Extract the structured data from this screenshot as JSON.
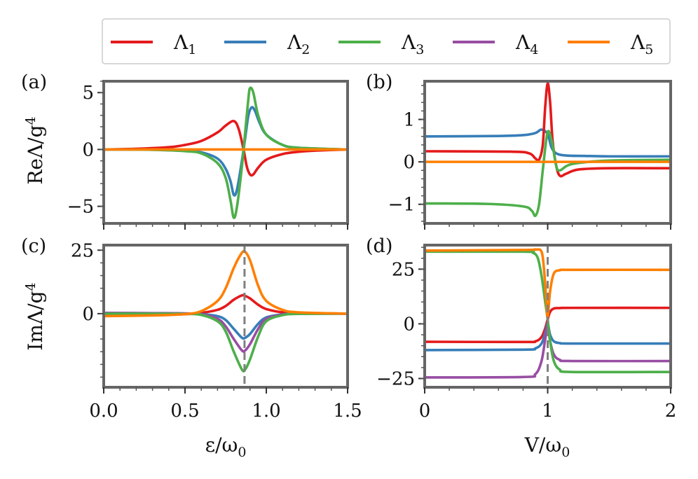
{
  "colors": {
    "L1": "#e41a1c",
    "L2": "#377eb8",
    "L3": "#4daf4a",
    "L4": "#984ea3",
    "L5": "#ff7f00",
    "frame": "#666666",
    "dashed": "#808080"
  },
  "legend": {
    "placement": "top",
    "entries": [
      {
        "key": "L1",
        "label": "Λ",
        "sub": "1"
      },
      {
        "key": "L2",
        "label": "Λ",
        "sub": "2"
      },
      {
        "key": "L3",
        "label": "Λ",
        "sub": "3"
      },
      {
        "key": "L4",
        "label": "Λ",
        "sub": "4"
      },
      {
        "key": "L5",
        "label": "Λ",
        "sub": "5"
      }
    ]
  },
  "axes": {
    "x_left": {
      "pre": "ε/ω",
      "sub": "0"
    },
    "x_right": {
      "pre": "V/ω",
      "sub": "0"
    },
    "y_top": {
      "pre": "ReΛ/g",
      "sup": "4"
    },
    "y_bottom": {
      "pre": "ImΛ/g",
      "sup": "4"
    }
  },
  "chart_data": [
    {
      "panel": "(a)",
      "type": "line",
      "xlim": [
        0,
        1.5
      ],
      "ylim": [
        -6.5,
        6
      ],
      "xticks": [],
      "yticks": [
        -5,
        0,
        5
      ],
      "ytick_labels": [
        "−5",
        "0",
        "5"
      ],
      "vline_x": null,
      "series": [
        {
          "key": "L1",
          "x": [
            0,
            0.2,
            0.4,
            0.5,
            0.6,
            0.7,
            0.75,
            0.8,
            0.83,
            0.86,
            0.88,
            0.9,
            0.92,
            0.95,
            1.0,
            1.1,
            1.2,
            1.3,
            1.5
          ],
          "y": [
            0,
            0.06,
            0.2,
            0.4,
            0.75,
            1.5,
            2.1,
            2.5,
            1.8,
            0,
            -1.5,
            -2.2,
            -2.2,
            -1.6,
            -0.9,
            -0.4,
            -0.2,
            -0.1,
            0
          ]
        },
        {
          "key": "L2",
          "x": [
            0,
            0.3,
            0.5,
            0.6,
            0.7,
            0.75,
            0.78,
            0.8,
            0.82,
            0.85,
            0.87,
            0.89,
            0.91,
            0.93,
            0.96,
            1.0,
            1.1,
            1.2,
            1.5
          ],
          "y": [
            0,
            -0.02,
            -0.1,
            -0.25,
            -0.8,
            -1.7,
            -2.8,
            -4.0,
            -3.5,
            -1.0,
            1.0,
            3.0,
            3.7,
            3.4,
            2.3,
            1.3,
            0.4,
            0.15,
            0
          ]
        },
        {
          "key": "L3",
          "x": [
            0,
            0.3,
            0.5,
            0.6,
            0.7,
            0.75,
            0.78,
            0.8,
            0.82,
            0.85,
            0.87,
            0.89,
            0.9,
            0.92,
            0.95,
            1.0,
            1.1,
            1.2,
            1.5
          ],
          "y": [
            0,
            -0.03,
            -0.15,
            -0.35,
            -1.2,
            -2.5,
            -4.5,
            -6.0,
            -5.0,
            -1.5,
            1.5,
            4.5,
            5.4,
            5.0,
            3.0,
            1.3,
            0.4,
            0.15,
            0
          ]
        },
        {
          "key": "L5",
          "x": [
            0,
            1.5
          ],
          "y": [
            0,
            0
          ]
        }
      ]
    },
    {
      "panel": "(b)",
      "type": "line",
      "xlim": [
        0,
        2
      ],
      "ylim": [
        -1.45,
        1.9
      ],
      "xticks": [],
      "yticks": [
        -1,
        0,
        1
      ],
      "ytick_labels": [
        "−1",
        "0",
        "1"
      ],
      "vline_x": null,
      "series": [
        {
          "key": "L2",
          "x": [
            0,
            0.6,
            0.8,
            0.9,
            0.95,
            1.0,
            1.03,
            1.07,
            1.15,
            1.3,
            1.5,
            2.0
          ],
          "y": [
            0.6,
            0.61,
            0.63,
            0.68,
            0.76,
            0.65,
            0.35,
            0.2,
            0.15,
            0.14,
            0.13,
            0.13
          ]
        },
        {
          "key": "L1",
          "x": [
            0,
            0.7,
            0.85,
            0.9,
            0.93,
            0.96,
            0.98,
            1.0,
            1.02,
            1.04,
            1.07,
            1.1,
            1.15,
            1.25,
            1.5,
            2.0
          ],
          "y": [
            0.25,
            0.24,
            0.2,
            0.08,
            0.05,
            0.4,
            1.3,
            1.85,
            1.4,
            0.5,
            -0.1,
            -0.33,
            -0.28,
            -0.18,
            -0.15,
            -0.15
          ]
        },
        {
          "key": "L3",
          "x": [
            0,
            0.5,
            0.8,
            0.87,
            0.9,
            0.93,
            0.96,
            0.99,
            1.01,
            1.04,
            1.07,
            1.1,
            1.2,
            1.5,
            2.0
          ],
          "y": [
            -0.98,
            -0.99,
            -1.05,
            -1.15,
            -1.27,
            -1.0,
            -0.2,
            0.55,
            0.72,
            0.4,
            -0.1,
            -0.2,
            -0.05,
            0.03,
            0.05
          ]
        },
        {
          "key": "L5",
          "x": [
            0,
            2
          ],
          "y": [
            0,
            0
          ]
        }
      ]
    },
    {
      "panel": "(c)",
      "type": "line",
      "xlim": [
        0,
        1.5
      ],
      "ylim": [
        -29,
        27
      ],
      "xticks": [
        0,
        0.5,
        1.0,
        1.5
      ],
      "xtick_labels": [
        "0.0",
        "0.5",
        "1.0",
        "1.5"
      ],
      "yticks": [
        0,
        25
      ],
      "ytick_labels": [
        "0",
        "25"
      ],
      "vline_x": 0.866,
      "series": [
        {
          "key": "L1",
          "x": [
            0,
            0.3,
            0.5,
            0.6,
            0.7,
            0.75,
            0.8,
            0.85,
            0.87,
            0.9,
            0.95,
            1.0,
            1.1,
            1.2,
            1.5
          ],
          "y": [
            -0.5,
            -0.4,
            -0.2,
            0.3,
            1.5,
            3.0,
            5.5,
            7.2,
            7.0,
            6.0,
            3.5,
            1.8,
            0.5,
            0.2,
            0
          ]
        },
        {
          "key": "L2",
          "x": [
            0,
            0.3,
            0.5,
            0.6,
            0.7,
            0.75,
            0.8,
            0.85,
            0.87,
            0.9,
            0.95,
            1.0,
            1.1,
            1.2,
            1.5
          ],
          "y": [
            0.2,
            0.1,
            0,
            -0.2,
            -1.0,
            -2.5,
            -6.0,
            -9.5,
            -9.5,
            -8.0,
            -4.0,
            -1.5,
            -0.3,
            0,
            0
          ]
        },
        {
          "key": "L4",
          "x": [
            0,
            0.3,
            0.5,
            0.6,
            0.7,
            0.75,
            0.8,
            0.85,
            0.87,
            0.9,
            0.95,
            1.0,
            1.1,
            1.2,
            1.5
          ],
          "y": [
            0.3,
            0.2,
            0.1,
            -0.3,
            -2.0,
            -5.0,
            -10.0,
            -14.5,
            -14.5,
            -12.0,
            -6.0,
            -2.0,
            -0.4,
            0,
            0
          ]
        },
        {
          "key": "L3",
          "x": [
            0,
            0.3,
            0.5,
            0.6,
            0.7,
            0.75,
            0.8,
            0.85,
            0.87,
            0.9,
            0.95,
            1.0,
            1.1,
            1.2,
            1.5
          ],
          "y": [
            0,
            0,
            -0.1,
            -0.5,
            -3.0,
            -7.0,
            -15.0,
            -22.0,
            -22.0,
            -18.0,
            -9.0,
            -3.0,
            -0.6,
            -0.1,
            0
          ]
        },
        {
          "key": "L5",
          "x": [
            0,
            0.3,
            0.5,
            0.6,
            0.7,
            0.75,
            0.8,
            0.84,
            0.866,
            0.9,
            0.95,
            1.0,
            1.1,
            1.2,
            1.5
          ],
          "y": [
            -1.0,
            -0.7,
            -0.2,
            1.0,
            5.0,
            10.0,
            18.0,
            23.0,
            24.5,
            21.0,
            11.0,
            5.0,
            1.5,
            0.5,
            0
          ]
        }
      ]
    },
    {
      "panel": "(d)",
      "type": "line",
      "xlim": [
        0,
        2
      ],
      "ylim": [
        -29,
        36
      ],
      "xticks": [
        0,
        1,
        2
      ],
      "xtick_labels": [
        "0",
        "1",
        "2"
      ],
      "yticks": [
        -25,
        0,
        25
      ],
      "ytick_labels": [
        "−25",
        "0",
        "25"
      ],
      "vline_x": 1.0,
      "series": [
        {
          "key": "L1",
          "x": [
            0,
            0.8,
            0.9,
            0.95,
            0.98,
            1.0,
            1.02,
            1.05,
            1.1,
            1.2,
            2.0
          ],
          "y": [
            -8.2,
            -8.3,
            -8.0,
            -6.0,
            -2.0,
            2.0,
            5.5,
            7.0,
            7.2,
            7.3,
            7.3
          ]
        },
        {
          "key": "L2",
          "x": [
            0,
            0.8,
            0.9,
            0.95,
            0.98,
            1.0,
            1.02,
            1.05,
            1.1,
            1.2,
            2.0
          ],
          "y": [
            -12.0,
            -11.8,
            -11.2,
            -9.0,
            -4.0,
            0,
            -5.0,
            -8.0,
            -8.8,
            -9.0,
            -9.0
          ]
        },
        {
          "key": "L4",
          "x": [
            0,
            0.8,
            0.9,
            0.95,
            0.98,
            1.0,
            1.02,
            1.05,
            1.1,
            1.2,
            2.0
          ],
          "y": [
            -24.5,
            -24.3,
            -23.0,
            -17.0,
            -7.0,
            -1.0,
            -8.0,
            -14.0,
            -16.5,
            -17.0,
            -17.0
          ]
        },
        {
          "key": "L3",
          "x": [
            0,
            0.8,
            0.88,
            0.92,
            0.95,
            0.98,
            1.0,
            1.02,
            1.05,
            1.1,
            1.2,
            2.0
          ],
          "y": [
            33.0,
            33.0,
            32.5,
            30.0,
            22.0,
            10.0,
            2.0,
            -8.0,
            -17.0,
            -21.0,
            -22.0,
            -22.0
          ]
        },
        {
          "key": "L5",
          "x": [
            0,
            0.8,
            0.9,
            0.95,
            0.97,
            0.99,
            1.0,
            1.02,
            1.05,
            1.1,
            1.2,
            2.0
          ],
          "y": [
            33.5,
            33.8,
            34.0,
            33.0,
            25.0,
            10.0,
            3.0,
            15.0,
            23.0,
            24.5,
            24.7,
            24.7
          ]
        }
      ]
    }
  ]
}
